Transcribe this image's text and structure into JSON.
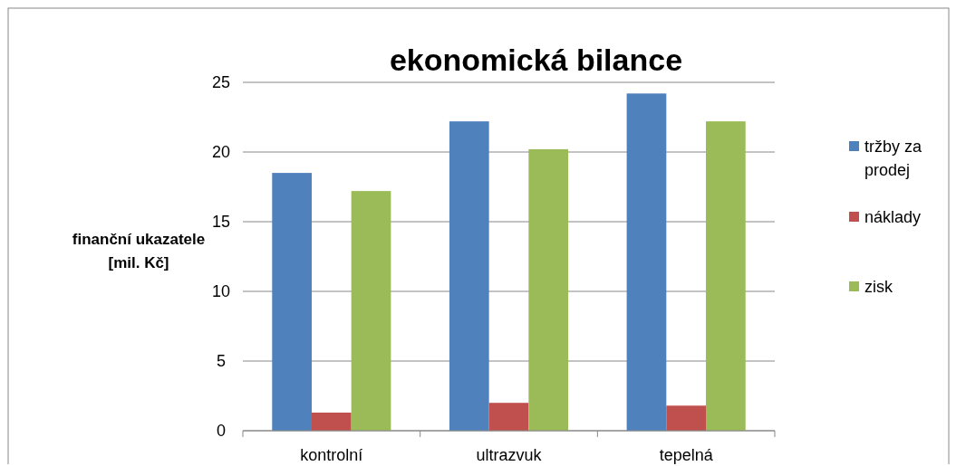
{
  "chart_data": {
    "type": "bar",
    "title": "ekonomická bilance",
    "ylabel": "finanční ukazatele [mil. Kč]",
    "categories": [
      "kontrolní",
      "ultrazvuk",
      "tepelná"
    ],
    "series": [
      {
        "name": "tržby za prodej",
        "color": "#4f81bd",
        "values": [
          18.5,
          22.2,
          24.2
        ]
      },
      {
        "name": "náklady",
        "color": "#c0504d",
        "values": [
          1.3,
          2.0,
          1.8
        ]
      },
      {
        "name": "zisk",
        "color": "#9bbb59",
        "values": [
          17.2,
          20.2,
          22.2
        ]
      }
    ],
    "ylim": [
      0,
      25
    ],
    "yticks": [
      0,
      5,
      10,
      15,
      20,
      25
    ],
    "grid": "y",
    "legend": "right"
  }
}
